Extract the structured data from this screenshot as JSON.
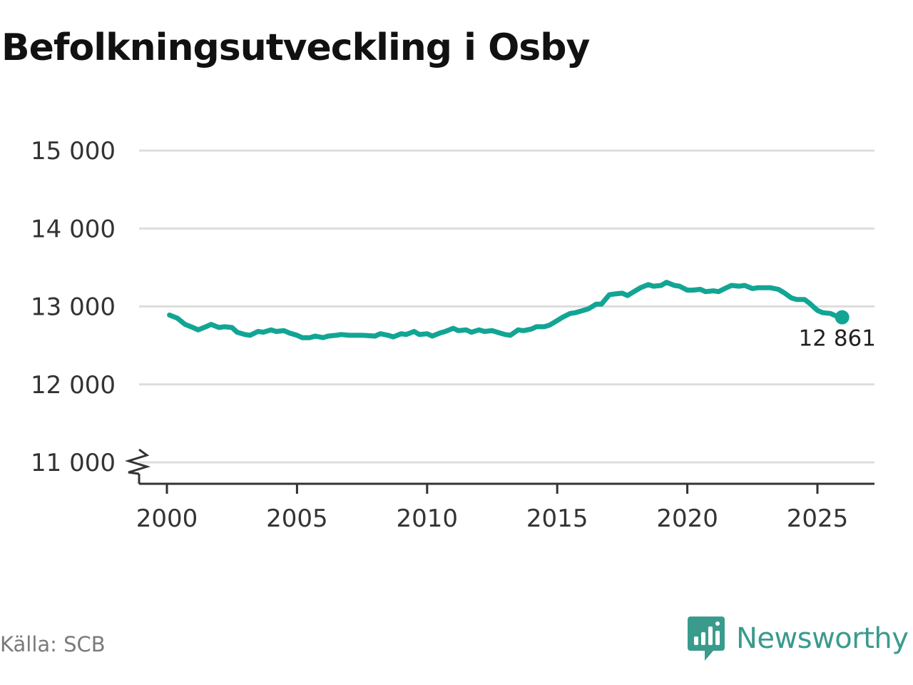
{
  "title": "Befolkningsutveckling i Osby",
  "source": "Källa: SCB",
  "brand": {
    "name": "Newsworthy",
    "icon": "newsworthy-chart-bubble-icon"
  },
  "colors": {
    "line": "#12a594",
    "grid": "#dddddd",
    "axis": "#333333",
    "brand": "#3a9b8d"
  },
  "chart_data": {
    "type": "line",
    "title": "Befolkningsutveckling i Osby",
    "xlabel": "",
    "ylabel": "",
    "xlim": [
      1999.9,
      2027.1
    ],
    "ylim": [
      10700,
      15000
    ],
    "axis_break": true,
    "grid": "horizontal",
    "x_ticks": [
      2000,
      2005,
      2010,
      2015,
      2020,
      2025
    ],
    "x_tick_labels": [
      "2000",
      "2005",
      "2010",
      "2015",
      "2020",
      "2025"
    ],
    "y_ticks": [
      11000,
      12000,
      13000,
      14000,
      15000
    ],
    "y_tick_labels": [
      "11 000",
      "12 000",
      "13 000",
      "14 000",
      "15 000"
    ],
    "end_label": "12 861",
    "series": [
      {
        "x": [
          2000.1,
          2000.4,
          2000.7,
          2001.0,
          2001.2,
          2001.5,
          2001.7,
          2002.0,
          2002.2,
          2002.5,
          2002.7,
          2003.0,
          2003.2,
          2003.5,
          2003.7,
          2004.0,
          2004.2,
          2004.5,
          2004.7,
          2005.0,
          2005.2,
          2005.5,
          2005.7,
          2006.0,
          2006.2,
          2006.5,
          2006.7,
          2007.0,
          2007.5,
          2008.0,
          2008.2,
          2008.5,
          2008.7,
          2009.0,
          2009.2,
          2009.5,
          2009.7,
          2010.0,
          2010.2,
          2010.5,
          2010.7,
          2011.0,
          2011.2,
          2011.5,
          2011.7,
          2012.0,
          2012.2,
          2012.5,
          2012.7,
          2013.0,
          2013.2,
          2013.5,
          2013.7,
          2014.0,
          2014.2,
          2014.5,
          2014.7,
          2015.0,
          2015.2,
          2015.5,
          2015.7,
          2016.0,
          2016.2,
          2016.5,
          2016.7,
          2017.0,
          2017.2,
          2017.5,
          2017.7,
          2018.0,
          2018.2,
          2018.5,
          2018.7,
          2019.0,
          2019.2,
          2019.5,
          2019.7,
          2020.0,
          2020.2,
          2020.5,
          2020.7,
          2021.0,
          2021.2,
          2021.5,
          2021.7,
          2022.0,
          2022.2,
          2022.5,
          2022.7,
          2023.0,
          2023.2,
          2023.5,
          2023.7,
          2024.0,
          2024.2,
          2024.5,
          2024.7,
          2025.0,
          2025.2,
          2025.5,
          2025.7,
          2025.95
        ],
        "y": [
          12890,
          12850,
          12770,
          12730,
          12700,
          12740,
          12770,
          12730,
          12740,
          12730,
          12670,
          12640,
          12630,
          12680,
          12670,
          12700,
          12680,
          12690,
          12660,
          12630,
          12600,
          12600,
          12620,
          12600,
          12620,
          12630,
          12640,
          12630,
          12630,
          12620,
          12650,
          12630,
          12610,
          12650,
          12640,
          12680,
          12640,
          12650,
          12620,
          12660,
          12680,
          12720,
          12690,
          12700,
          12670,
          12700,
          12680,
          12690,
          12670,
          12640,
          12630,
          12700,
          12690,
          12710,
          12740,
          12740,
          12760,
          12820,
          12860,
          12910,
          12920,
          12950,
          12970,
          13030,
          13030,
          13150,
          13160,
          13170,
          13140,
          13200,
          13240,
          13280,
          13260,
          13270,
          13310,
          13270,
          13260,
          13210,
          13210,
          13220,
          13190,
          13200,
          13190,
          13240,
          13270,
          13260,
          13270,
          13230,
          13240,
          13240,
          13240,
          13220,
          13180,
          13110,
          13090,
          13090,
          13040,
          12950,
          12920,
          12910,
          12880,
          12861
        ]
      }
    ]
  }
}
